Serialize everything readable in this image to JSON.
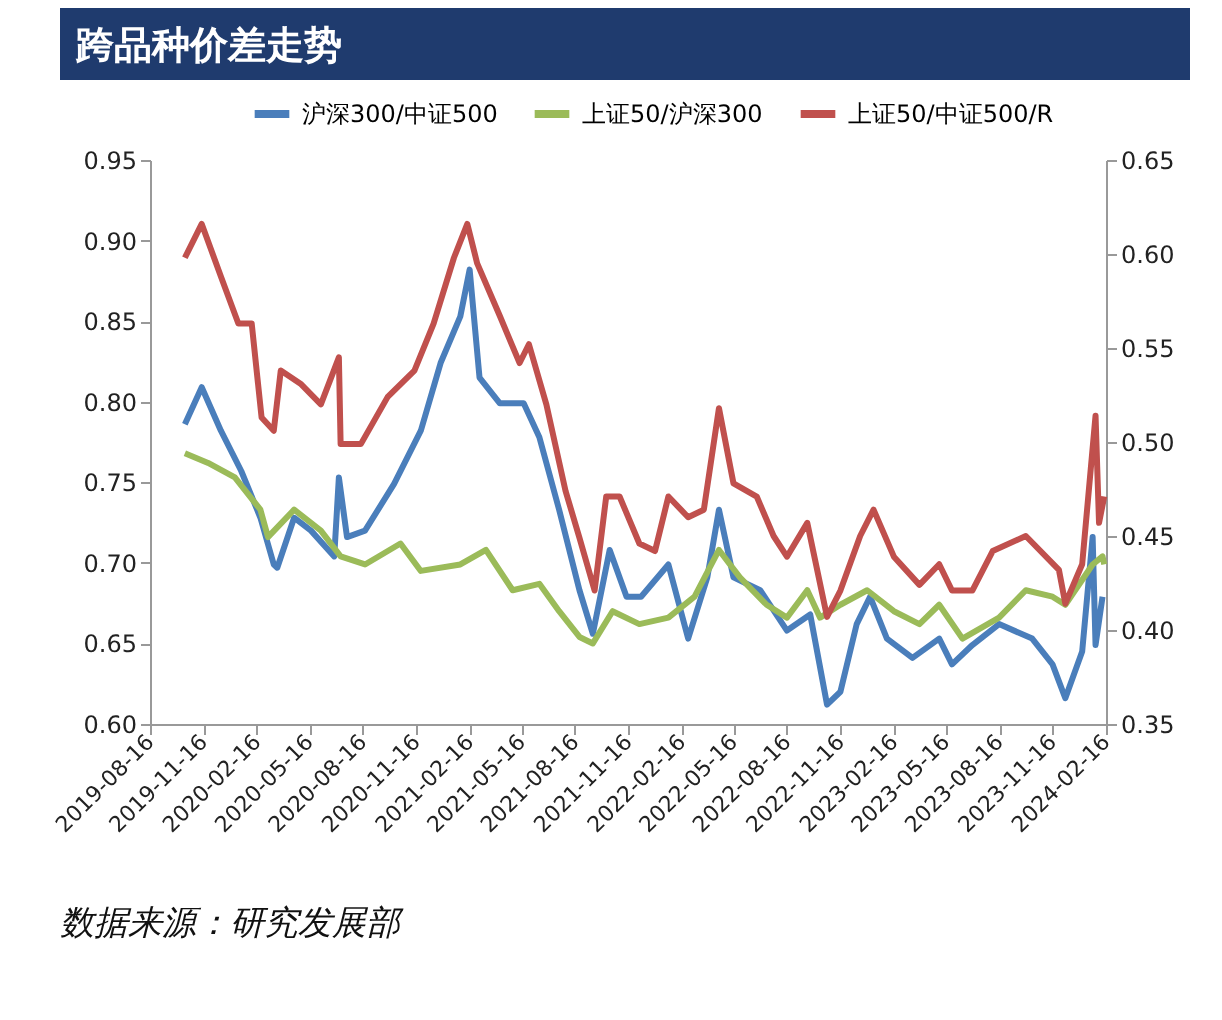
{
  "chart_data": {
    "type": "line",
    "title": "跨品种价差走势",
    "annotations": [
      "数据来源：研究发展部"
    ],
    "xlim": [
      "2019-08-16",
      "2024-02-16"
    ],
    "xticks": [
      "2019-08-16",
      "2019-11-16",
      "2020-02-16",
      "2020-05-16",
      "2020-08-16",
      "2020-11-16",
      "2021-02-16",
      "2021-05-16",
      "2021-08-16",
      "2021-11-16",
      "2022-02-16",
      "2022-05-16",
      "2022-08-16",
      "2022-11-16",
      "2023-02-16",
      "2023-05-16",
      "2023-08-16",
      "2023-11-16",
      "2024-02-16"
    ],
    "ylim": [
      0.6,
      0.95
    ],
    "yticks": [
      {
        "value": 0.6,
        "label": "0.60"
      },
      {
        "value": 0.65,
        "label": "0.65"
      },
      {
        "value": 0.7,
        "label": "0.70"
      },
      {
        "value": 0.75,
        "label": "0.75"
      },
      {
        "value": 0.8,
        "label": "0.80"
      },
      {
        "value": 0.85,
        "label": "0.85"
      },
      {
        "value": 0.9,
        "label": "0.90"
      },
      {
        "value": 0.95,
        "label": "0.95"
      }
    ],
    "y2lim": [
      0.35,
      0.65
    ],
    "y2ticks": [
      {
        "value": 0.35,
        "label": "0.35"
      },
      {
        "value": 0.4,
        "label": "0.40"
      },
      {
        "value": 0.45,
        "label": "0.45"
      },
      {
        "value": 0.5,
        "label": "0.50"
      },
      {
        "value": 0.55,
        "label": "0.55"
      },
      {
        "value": 0.6,
        "label": "0.60"
      },
      {
        "value": 0.65,
        "label": "0.65"
      }
    ],
    "grid": false,
    "legend": "top",
    "marker": "none",
    "line_style": "solid",
    "series": [
      {
        "name": "沪深300/中证500",
        "color": "#4a7ebb",
        "x": [
          "2019-10-15",
          "2019-11-13",
          "2019-12-16",
          "2020-01-20",
          "2020-02-22",
          "2020-03-16",
          "2020-03-22",
          "2020-04-20",
          "2020-05-19",
          "2020-06-28",
          "2020-07-06",
          "2020-07-20",
          "2020-08-20",
          "2020-10-09",
          "2020-11-24",
          "2020-12-28",
          "2021-01-31",
          "2021-02-16",
          "2021-03-05",
          "2021-04-09",
          "2021-05-20",
          "2021-06-16",
          "2021-07-20",
          "2021-08-24",
          "2021-09-16",
          "2021-10-15",
          "2021-11-13",
          "2021-12-08",
          "2022-01-24",
          "2022-02-27",
          "2022-04-01",
          "2022-04-21",
          "2022-05-16",
          "2022-07-01",
          "2022-08-16",
          "2022-09-25",
          "2022-10-24",
          "2022-11-16",
          "2022-12-14",
          "2023-01-06",
          "2023-02-04",
          "2023-03-20",
          "2023-05-05",
          "2023-05-27",
          "2023-07-01",
          "2023-08-16",
          "2023-10-12",
          "2023-11-16",
          "2023-12-08",
          "2024-01-06",
          "2024-01-24",
          "2024-01-29",
          "2024-02-10"
        ],
        "values": [
          0.786,
          0.809,
          0.782,
          0.757,
          0.728,
          0.699,
          0.697,
          0.728,
          0.72,
          0.704,
          0.753,
          0.716,
          0.72,
          0.749,
          0.782,
          0.824,
          0.853,
          0.882,
          0.815,
          0.799,
          0.799,
          0.778,
          0.733,
          0.683,
          0.656,
          0.708,
          0.679,
          0.679,
          0.699,
          0.653,
          0.691,
          0.733,
          0.691,
          0.683,
          0.658,
          0.668,
          0.612,
          0.62,
          0.662,
          0.679,
          0.653,
          0.641,
          0.653,
          0.637,
          0.649,
          0.662,
          0.653,
          0.637,
          0.616,
          0.645,
          0.716,
          0.649,
          0.679
        ]
      },
      {
        "name": "上证50/沪深300",
        "color": "#9bbb59",
        "x": [
          "2019-10-15",
          "2019-11-24",
          "2020-01-09",
          "2020-02-22",
          "2020-03-06",
          "2020-04-20",
          "2020-06-05",
          "2020-07-09",
          "2020-08-20",
          "2020-10-20",
          "2020-11-24",
          "2021-01-31",
          "2021-03-16",
          "2021-05-01",
          "2021-06-16",
          "2021-07-20",
          "2021-08-24",
          "2021-09-16",
          "2021-10-20",
          "2021-12-05",
          "2022-01-24",
          "2022-03-10",
          "2022-04-21",
          "2022-05-27",
          "2022-07-12",
          "2022-08-16",
          "2022-09-20",
          "2022-10-12",
          "2022-11-16",
          "2023-01-01",
          "2023-02-16",
          "2023-04-01",
          "2023-05-05",
          "2023-06-14",
          "2023-08-16",
          "2023-10-01",
          "2023-11-16",
          "2023-12-08",
          "2024-01-24",
          "2024-02-10",
          "2024-02-13"
        ],
        "values": [
          0.768,
          0.762,
          0.753,
          0.733,
          0.716,
          0.733,
          0.72,
          0.704,
          0.699,
          0.712,
          0.695,
          0.699,
          0.708,
          0.683,
          0.687,
          0.67,
          0.654,
          0.65,
          0.67,
          0.662,
          0.666,
          0.679,
          0.708,
          0.691,
          0.674,
          0.666,
          0.683,
          0.666,
          0.674,
          0.683,
          0.67,
          0.662,
          0.674,
          0.653,
          0.666,
          0.683,
          0.679,
          0.674,
          0.699,
          0.704,
          0.699
        ]
      },
      {
        "name": "上证50/中证500/R",
        "color": "#c0504d",
        "axis": "y2",
        "x": [
          "2019-10-15",
          "2019-11-13",
          "2019-12-16",
          "2020-01-15",
          "2020-02-07",
          "2020-02-24",
          "2020-03-16",
          "2020-03-28",
          "2020-05-01",
          "2020-06-05",
          "2020-07-06",
          "2020-07-09",
          "2020-08-13",
          "2020-09-28",
          "2020-11-13",
          "2020-12-16",
          "2021-01-20",
          "2021-02-12",
          "2021-03-01",
          "2021-04-09",
          "2021-05-13",
          "2021-05-29",
          "2021-06-28",
          "2021-07-31",
          "2021-08-24",
          "2021-09-19",
          "2021-10-09",
          "2021-11-01",
          "2021-12-05",
          "2022-01-01",
          "2022-01-24",
          "2022-02-27",
          "2022-03-26",
          "2022-04-21",
          "2022-05-16",
          "2022-06-25",
          "2022-07-24",
          "2022-08-16",
          "2022-09-20",
          "2022-10-24",
          "2022-11-16",
          "2022-12-20",
          "2023-01-12",
          "2023-02-16",
          "2023-04-01",
          "2023-05-05",
          "2023-05-27",
          "2023-07-01",
          "2023-08-05",
          "2023-10-01",
          "2023-11-27",
          "2023-12-08",
          "2024-01-06",
          "2024-01-29",
          "2024-02-04",
          "2024-02-13"
        ],
        "values": [
          0.598,
          0.616,
          0.588,
          0.563,
          0.563,
          0.513,
          0.506,
          0.538,
          0.531,
          0.52,
          0.545,
          0.499,
          0.499,
          0.524,
          0.538,
          0.563,
          0.598,
          0.616,
          0.595,
          0.567,
          0.542,
          0.552,
          0.52,
          0.474,
          0.449,
          0.421,
          0.471,
          0.471,
          0.446,
          0.442,
          0.471,
          0.46,
          0.464,
          0.518,
          0.478,
          0.471,
          0.45,
          0.439,
          0.457,
          0.407,
          0.421,
          0.45,
          0.464,
          0.439,
          0.424,
          0.435,
          0.421,
          0.421,
          0.442,
          0.45,
          0.432,
          0.414,
          0.435,
          0.514,
          0.457,
          0.471
        ]
      }
    ]
  }
}
